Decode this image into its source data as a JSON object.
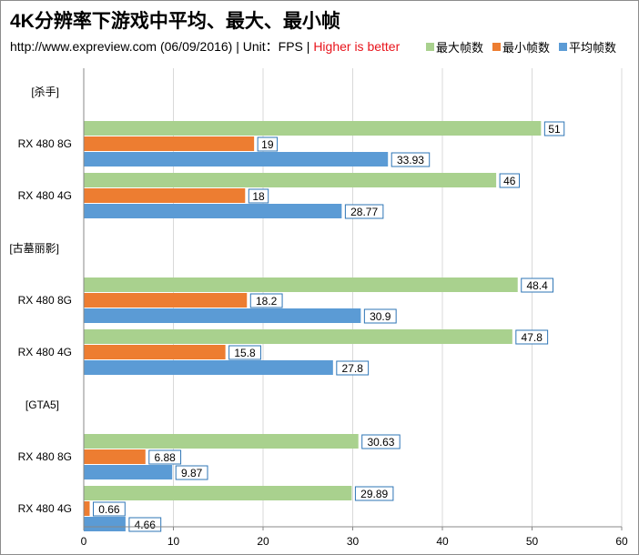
{
  "header": {
    "title": "4K分辨率下游戏中平均、最大、最小帧",
    "source": "http://www.expreview.com (06/09/2016)",
    "unit": " | Unit：FPS | ",
    "note": "Higher is better"
  },
  "colors": {
    "max": "#a9d18e",
    "min": "#ed7d31",
    "avg": "#5b9bd5",
    "grid": "#d9d9d9",
    "axis": "#888888",
    "label_border": "#2e75b6",
    "note": "#e8141c"
  },
  "chart_data": {
    "type": "bar",
    "orientation": "horizontal",
    "title": "4K分辨率下游戏中平均、最大、最小帧",
    "xlabel": "",
    "ylabel": "",
    "xlim": [
      0,
      60
    ],
    "x_ticks": [
      0,
      10,
      20,
      30,
      40,
      50,
      60
    ],
    "gridlines": true,
    "legend": {
      "position": "top-right",
      "entries": [
        {
          "key": "max",
          "label": "最大帧数"
        },
        {
          "key": "min",
          "label": "最小帧数"
        },
        {
          "key": "avg",
          "label": "平均帧数"
        }
      ]
    },
    "groups": [
      {
        "game": "[杀手]",
        "cards": [
          {
            "label": "RX 480 8G",
            "values": {
              "max": 51,
              "min": 19,
              "avg": 33.93
            },
            "display": {
              "max": "51",
              "min": "19",
              "avg": "33.93"
            }
          },
          {
            "label": "RX 480 4G",
            "values": {
              "max": 46,
              "min": 18,
              "avg": 28.77
            },
            "display": {
              "max": "46",
              "min": "18",
              "avg": "28.77"
            }
          }
        ]
      },
      {
        "game": "[古墓丽影]",
        "cards": [
          {
            "label": "RX 480 8G",
            "values": {
              "max": 48.4,
              "min": 18.2,
              "avg": 30.9
            },
            "display": {
              "max": "48.4",
              "min": "18.2",
              "avg": "30.9"
            }
          },
          {
            "label": "RX 480 4G",
            "values": {
              "max": 47.8,
              "min": 15.8,
              "avg": 27.8
            },
            "display": {
              "max": "47.8",
              "min": "15.8",
              "avg": "27.8"
            }
          }
        ]
      },
      {
        "game": "[GTA5]",
        "cards": [
          {
            "label": "RX 480 8G",
            "values": {
              "max": 30.63,
              "min": 6.88,
              "avg": 9.87
            },
            "display": {
              "max": "30.63",
              "min": "6.88",
              "avg": "9.87"
            }
          },
          {
            "label": "RX 480 4G",
            "values": {
              "max": 29.89,
              "min": 0.66,
              "avg": 4.66
            },
            "display": {
              "max": "29.89",
              "min": "0.66",
              "avg": "4.66"
            }
          }
        ]
      }
    ]
  }
}
